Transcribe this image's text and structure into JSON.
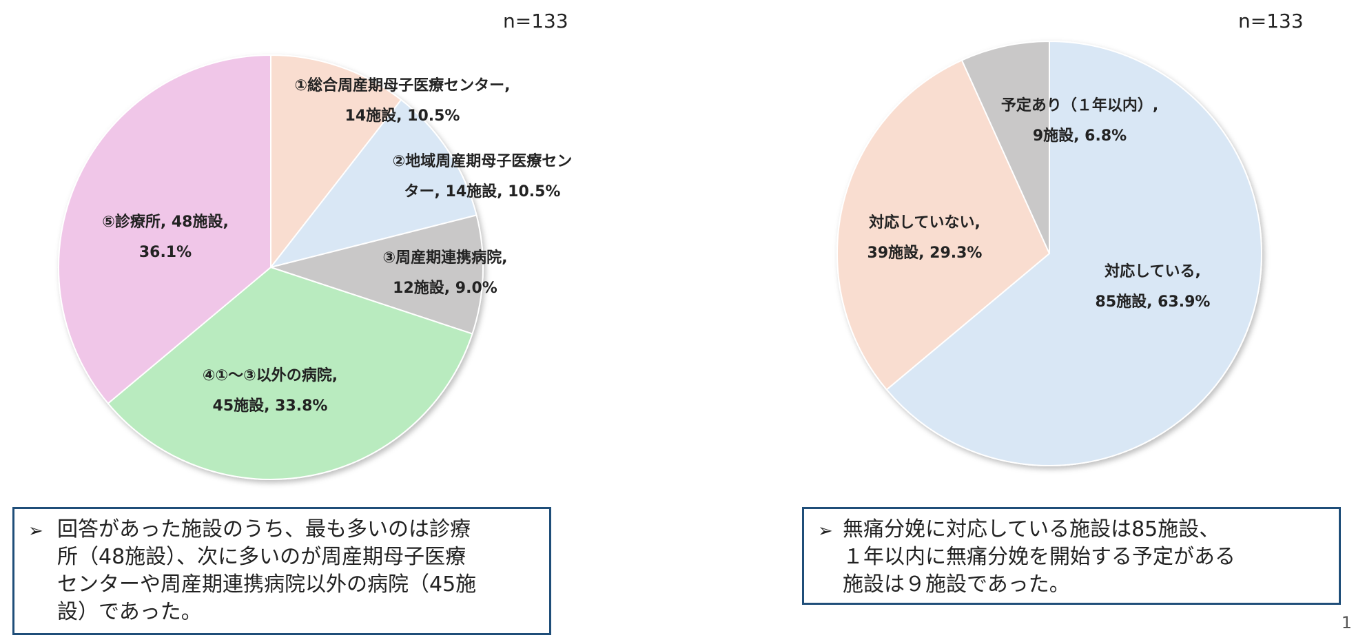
{
  "chart_data": [
    {
      "type": "pie",
      "n_label": "n=133",
      "slices": [
        {
          "label_lines": [
            "①総合周産期母子医療センター,",
            "14施設, 10.5%"
          ],
          "value": 14,
          "percent": 10.5,
          "color": "#f9ddd0"
        },
        {
          "label_lines": [
            "②地域周産期母子医療セン",
            "ター, 14施設, 10.5%"
          ],
          "value": 14,
          "percent": 10.5,
          "color": "#d9e7f5"
        },
        {
          "label_lines": [
            "③周産期連携病院,",
            "12施設, 9.0%"
          ],
          "value": 12,
          "percent": 9.0,
          "color": "#c9c8c8"
        },
        {
          "label_lines": [
            "④①～③以外の病院,",
            "45施設, 33.8%"
          ],
          "value": 45,
          "percent": 33.8,
          "color": "#b9ebbf"
        },
        {
          "label_lines": [
            "⑤診療所, 48施設,",
            "36.1%"
          ],
          "value": 48,
          "percent": 36.1,
          "color": "#f0c6e8"
        }
      ]
    },
    {
      "type": "pie",
      "n_label": "n=133",
      "slices": [
        {
          "label_lines": [
            "対応している,",
            "85施設, 63.9%"
          ],
          "value": 85,
          "percent": 63.9,
          "color": "#d9e7f5"
        },
        {
          "label_lines": [
            "対応していない,",
            "39施設, 29.3%"
          ],
          "value": 39,
          "percent": 29.3,
          "color": "#f9ddd0"
        },
        {
          "label_lines": [
            "予定あり（１年以内）,",
            "9施設, 6.8%"
          ],
          "value": 9,
          "percent": 6.8,
          "color": "#c9c8c8"
        }
      ]
    }
  ],
  "notes": {
    "note1": [
      "回答があった施設のうち、最も多いのは診療",
      "所（48施設）、次に多いのが周産期母子医療",
      "センターや周産期連携病院以外の病院（45施",
      "設）であった。"
    ],
    "note2": [
      "無痛分娩に対応している施設は85施設、",
      "１年以内に無痛分娩を開始する予定がある",
      "施設は９施設であった。"
    ],
    "bullet_icon": "arrowhead-bullet-icon"
  },
  "page_number": "1"
}
